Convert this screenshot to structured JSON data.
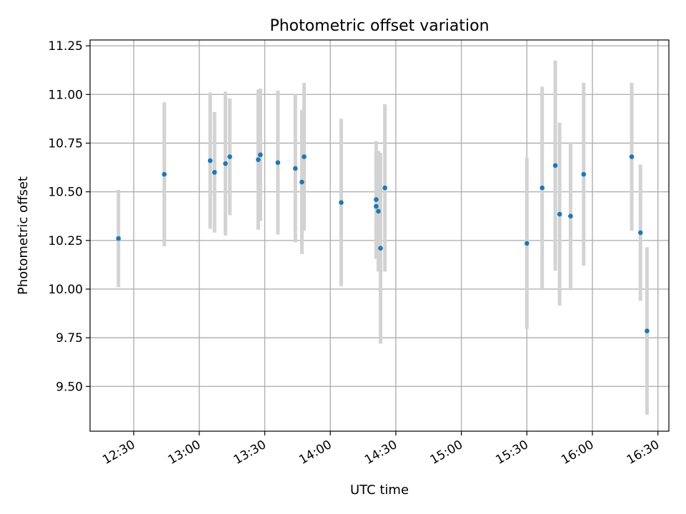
{
  "chart_data": {
    "type": "scatter",
    "title": "Photometric offset variation",
    "xlabel": "UTC time",
    "ylabel": "Photometric offset",
    "xlim": [
      "12:10",
      "16:35"
    ],
    "ylim": [
      9.27,
      11.28
    ],
    "x_ticks": [
      "12:30",
      "13:00",
      "13:30",
      "14:00",
      "14:30",
      "15:00",
      "15:30",
      "16:00",
      "16:30"
    ],
    "y_ticks": [
      "9.50",
      "9.75",
      "10.00",
      "10.25",
      "10.50",
      "10.75",
      "11.00",
      "11.25"
    ],
    "grid": true,
    "error_bar_color": "#d3d3d3",
    "point_color": "#1f77b4",
    "points": [
      {
        "x": "12:23",
        "y": 10.26,
        "err": 0.25
      },
      {
        "x": "12:44",
        "y": 10.59,
        "err": 0.37
      },
      {
        "x": "13:05",
        "y": 10.66,
        "err": 0.35
      },
      {
        "x": "13:07",
        "y": 10.6,
        "err": 0.31
      },
      {
        "x": "13:12",
        "y": 10.645,
        "err": 0.37
      },
      {
        "x": "13:14",
        "y": 10.68,
        "err": 0.3
      },
      {
        "x": "13:27",
        "y": 10.665,
        "err": 0.36
      },
      {
        "x": "13:28",
        "y": 10.69,
        "err": 0.34
      },
      {
        "x": "13:36",
        "y": 10.65,
        "err": 0.37
      },
      {
        "x": "13:44",
        "y": 10.62,
        "err": 0.38
      },
      {
        "x": "13:47",
        "y": 10.55,
        "err": 0.37
      },
      {
        "x": "13:48",
        "y": 10.68,
        "err": 0.38
      },
      {
        "x": "14:05",
        "y": 10.445,
        "err": 0.43
      },
      {
        "x": "14:21",
        "y": 10.46,
        "err": 0.3
      },
      {
        "x": "14:21",
        "y": 10.425,
        "err": 0.27
      },
      {
        "x": "14:22",
        "y": 10.4,
        "err": 0.31
      },
      {
        "x": "14:23",
        "y": 10.21,
        "err": 0.49
      },
      {
        "x": "14:25",
        "y": 10.52,
        "err": 0.43
      },
      {
        "x": "15:30",
        "y": 10.235,
        "err": 0.44
      },
      {
        "x": "15:37",
        "y": 10.52,
        "err": 0.52
      },
      {
        "x": "15:43",
        "y": 10.635,
        "err": 0.54
      },
      {
        "x": "15:45",
        "y": 10.385,
        "err": 0.47
      },
      {
        "x": "15:50",
        "y": 10.375,
        "err": 0.38
      },
      {
        "x": "15:56",
        "y": 10.59,
        "err": 0.47
      },
      {
        "x": "16:18",
        "y": 10.68,
        "err": 0.38
      },
      {
        "x": "16:22",
        "y": 10.29,
        "err": 0.35
      },
      {
        "x": "16:25",
        "y": 9.785,
        "err": 0.43
      }
    ]
  }
}
